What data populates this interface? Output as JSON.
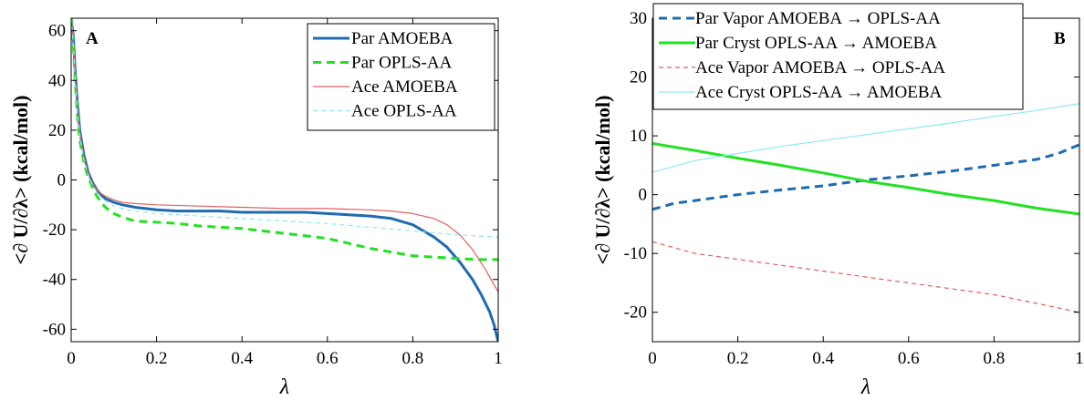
{
  "chart_data": [
    {
      "panel_label": "A",
      "type": "line",
      "xlabel": "λ",
      "ylabel": "<∂ U/∂λ> (kcal/mol)",
      "xlim": [
        0,
        1
      ],
      "ylim": [
        -65,
        65
      ],
      "xticks": [
        0,
        0.2,
        0.4,
        0.6,
        0.8,
        1
      ],
      "xtick_labels": [
        "0",
        "0.2",
        "0.4",
        "0.6",
        "0.8",
        "1"
      ],
      "yticks": [
        60,
        40,
        20,
        0,
        -20,
        -40,
        -60
      ],
      "ytick_labels": [
        "60",
        "40",
        "20",
        "0",
        "-20",
        "-40",
        "-60"
      ],
      "grid": false,
      "legend_position": "top-right",
      "series": [
        {
          "name": "Par AMOEBA",
          "color": "#1f6bb0",
          "style": "solid-thick",
          "x": [
            0,
            0.005,
            0.01,
            0.015,
            0.02,
            0.03,
            0.04,
            0.05,
            0.06,
            0.07,
            0.08,
            0.1,
            0.12,
            0.15,
            0.2,
            0.25,
            0.3,
            0.35,
            0.4,
            0.45,
            0.5,
            0.55,
            0.6,
            0.65,
            0.7,
            0.75,
            0.8,
            0.85,
            0.88,
            0.91,
            0.94,
            0.96,
            0.98,
            0.99,
            1.0
          ],
          "y": [
            65,
            58,
            42,
            30,
            20,
            10,
            3,
            -1,
            -4,
            -6,
            -7.5,
            -9,
            -10,
            -11,
            -12,
            -12.5,
            -12.5,
            -12.5,
            -13,
            -13,
            -13,
            -13,
            -13.5,
            -14,
            -14.5,
            -15.5,
            -18,
            -23,
            -27,
            -33,
            -40,
            -46,
            -53,
            -58,
            -65
          ]
        },
        {
          "name": "Par OPLS-AA",
          "color": "#22e022",
          "style": "dashed-thick",
          "x": [
            0,
            0.005,
            0.01,
            0.015,
            0.02,
            0.03,
            0.04,
            0.05,
            0.06,
            0.07,
            0.08,
            0.1,
            0.12,
            0.15,
            0.2,
            0.25,
            0.3,
            0.35,
            0.4,
            0.45,
            0.5,
            0.55,
            0.6,
            0.65,
            0.7,
            0.75,
            0.8,
            0.85,
            0.9,
            0.95,
            1.0
          ],
          "y": [
            65,
            55,
            38,
            25,
            16,
            7,
            1,
            -3,
            -6.5,
            -9,
            -11,
            -13.5,
            -15,
            -16.5,
            -17,
            -17.5,
            -18.5,
            -19,
            -19.5,
            -20.5,
            -21.5,
            -22.5,
            -23.5,
            -25.5,
            -27.5,
            -29,
            -30.5,
            -31,
            -31.5,
            -32,
            -32
          ]
        },
        {
          "name": "Ace AMOEBA",
          "color": "#e06060",
          "style": "solid-thin",
          "x": [
            0,
            0.005,
            0.01,
            0.015,
            0.02,
            0.03,
            0.04,
            0.05,
            0.06,
            0.07,
            0.08,
            0.1,
            0.12,
            0.15,
            0.2,
            0.3,
            0.4,
            0.5,
            0.6,
            0.7,
            0.75,
            0.8,
            0.85,
            0.88,
            0.91,
            0.94,
            0.97,
            1.0
          ],
          "y": [
            65,
            56,
            40,
            28,
            19,
            9,
            2.5,
            -1.5,
            -4,
            -5.5,
            -6.5,
            -8,
            -9,
            -9.5,
            -10,
            -10.5,
            -11,
            -11.5,
            -11.5,
            -12,
            -12.5,
            -13.5,
            -15.5,
            -18,
            -22,
            -28,
            -36,
            -45
          ]
        },
        {
          "name": "Ace OPLS-AA",
          "color": "#8fe8f2",
          "style": "dashed-thin",
          "x": [
            0,
            0.005,
            0.01,
            0.015,
            0.02,
            0.03,
            0.04,
            0.05,
            0.06,
            0.07,
            0.08,
            0.1,
            0.12,
            0.15,
            0.2,
            0.3,
            0.4,
            0.5,
            0.6,
            0.7,
            0.8,
            0.9,
            1.0
          ],
          "y": [
            65,
            55,
            39,
            27,
            18,
            8,
            2,
            -2,
            -5,
            -7,
            -8.5,
            -10.5,
            -11.5,
            -12.5,
            -13.5,
            -14.5,
            -15.5,
            -16.5,
            -17.5,
            -19,
            -20.5,
            -22,
            -23
          ]
        }
      ]
    },
    {
      "panel_label": "B",
      "type": "line",
      "xlabel": "λ",
      "ylabel": "<∂ U/∂λ> (kcal/mol)",
      "xlim": [
        0,
        1
      ],
      "ylim": [
        -25,
        30
      ],
      "xticks": [
        0,
        0.2,
        0.4,
        0.6,
        0.8,
        1
      ],
      "xtick_labels": [
        "0",
        "0.2",
        "0.4",
        "0.6",
        "0.8",
        "1"
      ],
      "yticks": [
        30,
        20,
        10,
        0,
        -10,
        -20
      ],
      "ytick_labels": [
        "30",
        "20",
        "10",
        "0",
        "-10",
        "-20"
      ],
      "grid": false,
      "legend_position": "top-left",
      "series": [
        {
          "name": "Par Vapor AMOEBA → OPLS-AA",
          "color": "#1f6bb0",
          "style": "dashed-thick",
          "x": [
            0,
            0.05,
            0.1,
            0.2,
            0.3,
            0.4,
            0.5,
            0.6,
            0.7,
            0.8,
            0.9,
            0.95,
            1.0
          ],
          "y": [
            -2.5,
            -1.5,
            -1,
            0,
            0.8,
            1.5,
            2.5,
            3.2,
            4,
            5,
            6,
            7,
            8.5
          ]
        },
        {
          "name": "Par Cryst OPLS-AA → AMOEBA",
          "color": "#22e022",
          "style": "solid-thick",
          "x": [
            0,
            0.1,
            0.2,
            0.3,
            0.4,
            0.5,
            0.6,
            0.7,
            0.8,
            0.9,
            1.0
          ],
          "y": [
            8.7,
            7.5,
            6.2,
            5,
            3.7,
            2.3,
            1.2,
            0,
            -1,
            -2.3,
            -3.3
          ]
        },
        {
          "name": "Ace Vapor AMOEBA → OPLS-AA",
          "color": "#e06060",
          "style": "dashed-thin",
          "x": [
            0,
            0.05,
            0.1,
            0.2,
            0.3,
            0.4,
            0.5,
            0.6,
            0.7,
            0.8,
            0.9,
            1.0
          ],
          "y": [
            -8,
            -9,
            -10,
            -11,
            -12,
            -13,
            -14,
            -15,
            -16,
            -17,
            -18.5,
            -20
          ]
        },
        {
          "name": "Ace Cryst OPLS-AA → AMOEBA",
          "color": "#8fe8f2",
          "style": "solid-thin",
          "x": [
            0,
            0.05,
            0.1,
            0.2,
            0.3,
            0.4,
            0.5,
            0.6,
            0.7,
            0.8,
            0.9,
            1.0
          ],
          "y": [
            3.8,
            4.8,
            5.8,
            7,
            8.2,
            9.2,
            10.2,
            11.2,
            12.2,
            13.3,
            14.3,
            15.5
          ]
        }
      ]
    }
  ]
}
